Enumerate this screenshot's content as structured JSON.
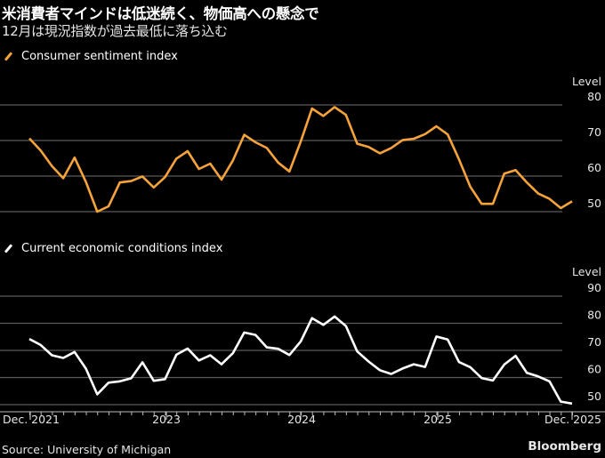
{
  "header": {
    "title": "米消費者マインドは低迷続く、物価高への懸念で",
    "subtitle": "12月は現況指数が過去最低に落ち込む"
  },
  "footer": {
    "source": "Source: University of Michigan",
    "brand": "Bloomberg"
  },
  "chart_data": [
    {
      "type": "line",
      "title": "Consumer sentiment index",
      "ylabel": "Level",
      "ylim": [
        47,
        83
      ],
      "yticks": [
        50,
        60,
        70,
        80
      ],
      "grid": true,
      "legend": "top-left",
      "color": "#f5a33a",
      "x_start": "Dec. 2021",
      "x_end": "Dec. 2025",
      "xtick_labels": [
        "Dec. 2021",
        "2023",
        "2024",
        "2025",
        "Dec. 2025"
      ],
      "values": [
        70.6,
        67.2,
        62.8,
        59.4,
        65.2,
        58.4,
        50.0,
        51.5,
        58.2,
        58.6,
        59.9,
        56.8,
        59.7,
        64.9,
        67.0,
        62.0,
        63.5,
        59.0,
        64.4,
        71.6,
        69.5,
        67.9,
        63.8,
        61.3,
        69.7,
        79.0,
        76.9,
        79.4,
        77.2,
        69.1,
        68.2,
        66.4,
        67.9,
        70.1,
        70.5,
        71.8,
        74.0,
        71.7,
        64.7,
        57.0,
        52.2,
        52.2,
        60.7,
        61.7,
        58.2,
        55.1,
        53.6,
        51.0,
        52.9
      ]
    },
    {
      "type": "line",
      "title": "Current economic conditions index",
      "ylabel": "Level",
      "ylim": [
        49,
        93
      ],
      "yticks": [
        50,
        60,
        70,
        80,
        90
      ],
      "grid": true,
      "legend": "top-left",
      "color": "#ffffff",
      "x_start": "Dec. 2021",
      "x_end": "Dec. 2025",
      "xtick_labels": [
        "Dec. 2021",
        "2023",
        "2024",
        "2025",
        "Dec. 2025"
      ],
      "values": [
        74.2,
        72.0,
        68.2,
        67.2,
        69.4,
        63.3,
        53.8,
        58.1,
        58.6,
        59.7,
        65.6,
        58.8,
        59.4,
        68.4,
        70.7,
        66.3,
        68.2,
        64.9,
        69.0,
        76.6,
        75.7,
        71.1,
        70.6,
        68.3,
        73.3,
        81.9,
        79.4,
        82.5,
        79.0,
        69.6,
        65.9,
        62.7,
        61.3,
        63.3,
        64.9,
        63.9,
        75.1,
        74.0,
        65.7,
        63.8,
        59.8,
        58.9,
        64.8,
        68.0,
        61.7,
        60.4,
        58.6,
        51.1,
        50.4
      ]
    }
  ]
}
